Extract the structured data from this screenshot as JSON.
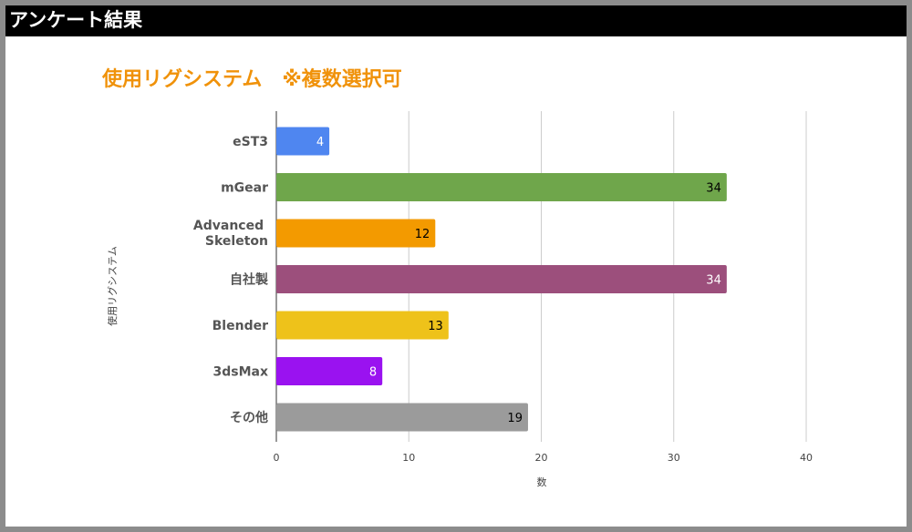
{
  "header": {
    "title": "アンケート結果"
  },
  "chart_data": {
    "type": "bar",
    "orientation": "horizontal",
    "title": "使用リグシステム　※複数選択可",
    "xlabel": "数",
    "ylabel": "使用リグシステム",
    "categories": [
      "eST3",
      "mGear",
      "Advanced Skeleton",
      "自社製",
      "Blender",
      "3dsMax",
      "その他"
    ],
    "values": [
      4,
      34,
      12,
      34,
      13,
      8,
      19
    ],
    "colors": [
      "#4f86f0",
      "#6fa64b",
      "#f39a00",
      "#9c4f7c",
      "#eec21a",
      "#9a12f0",
      "#9b9b9b"
    ],
    "label_colors": [
      "#ffffff",
      "#000000",
      "#000000",
      "#ffffff",
      "#000000",
      "#ffffff",
      "#000000"
    ],
    "xlim": [
      0,
      40
    ],
    "xticks": [
      0,
      10,
      20,
      30,
      40
    ],
    "grid": true,
    "legend": "none"
  }
}
